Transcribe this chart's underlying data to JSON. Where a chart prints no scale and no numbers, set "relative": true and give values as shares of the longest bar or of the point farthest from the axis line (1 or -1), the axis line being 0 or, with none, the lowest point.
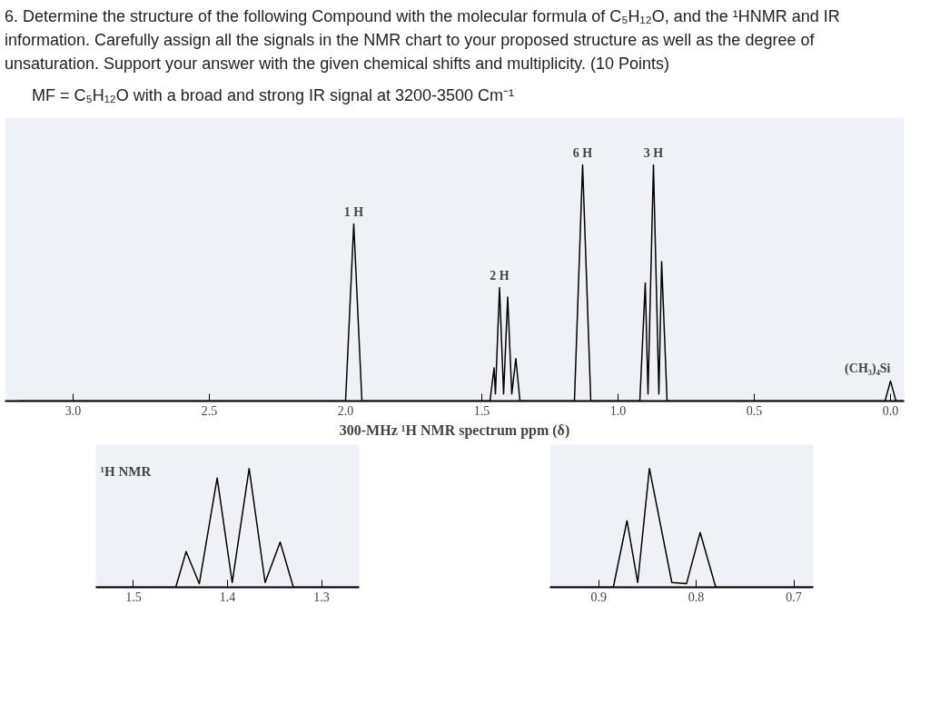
{
  "chart_data": [
    {
      "type": "line",
      "relative": true,
      "title": "6. Determine the structure of the following Compound with the molecular formula of C₅H₁₂O, and the ¹HNMR and IR information. Carefully assign all the signals in the NMR chart to your proposed structure as well as the degree of unsaturation. Support your answer with the given chemical shifts and multiplicity. (10 Points)",
      "subtitle": "MF = C₅H₁₂O with a broad and strong IR signal at 3200-3500 Cm⁻¹",
      "xlabel": "300-MHz ¹H NMR spectrum ppm (δ)",
      "x": [
        3.2,
        2.0,
        1.97,
        1.94,
        1.47,
        1.455,
        1.45,
        1.435,
        1.42,
        1.405,
        1.39,
        1.375,
        1.36,
        1.16,
        1.13,
        1.1,
        0.92,
        0.9,
        0.89,
        0.87,
        0.85,
        0.84,
        0.82,
        0.02,
        0.0,
        -0.02,
        -0.05
      ],
      "series": [
        {
          "color": "#000000",
          "values": [
            0,
            0,
            0.75,
            0,
            0,
            0.14,
            0.03,
            0.48,
            0.03,
            0.44,
            0.03,
            0.18,
            0,
            0,
            1,
            0,
            0,
            0.5,
            0.03,
            1,
            0.03,
            0.59,
            0,
            0,
            0.085,
            0,
            0
          ]
        }
      ],
      "xlim": [
        3.25,
        -0.05
      ],
      "xticks": [
        {
          "value": 3.0,
          "label": "3.0"
        },
        2.5,
        {
          "value": 2.0,
          "label": "2.0"
        },
        1.5,
        {
          "value": 1.0,
          "label": "1.0"
        },
        0.5,
        {
          "value": 0.0,
          "label": "0.0"
        }
      ],
      "grid": false,
      "annotations": [
        {
          "text": "1 H",
          "x": 1.97,
          "y": 0.75
        },
        {
          "text": "2 H",
          "x": 1.435,
          "y": 0.48
        },
        {
          "text": "6 H",
          "x": 1.13,
          "y": 1
        },
        {
          "text": "3 H",
          "x": 0.87,
          "y": 1
        },
        {
          "text": "(CH₃)₄Si",
          "x": 0.0,
          "y": 0.085
        }
      ]
    },
    {
      "type": "line",
      "relative": true,
      "x": [
        1.54,
        1.455,
        1.444,
        1.43,
        1.411,
        1.395,
        1.377,
        1.36,
        1.344,
        1.33,
        1.26
      ],
      "series": [
        {
          "color": "#000000",
          "values": [
            0,
            0,
            0.3,
            0.03,
            0.92,
            0.04,
            1,
            0.04,
            0.38,
            0,
            0
          ]
        }
      ],
      "xlim": [
        1.54,
        1.26
      ],
      "xticks": [
        1.5,
        1.4,
        1.3
      ],
      "grid": false,
      "annotations": [
        "¹H NMR"
      ]
    },
    {
      "type": "line",
      "relative": true,
      "x": [
        0.95,
        0.885,
        0.871,
        0.86,
        0.848,
        0.825,
        0.81,
        0.796,
        0.78,
        0.68
      ],
      "series": [
        {
          "color": "#000000",
          "values": [
            0,
            0,
            0.56,
            0.04,
            1,
            0.04,
            0.03,
            0.46,
            0,
            0
          ]
        }
      ],
      "xlim": [
        0.95,
        0.68
      ],
      "xticks": [
        0.9,
        0.8,
        0.7
      ],
      "grid": false
    }
  ]
}
